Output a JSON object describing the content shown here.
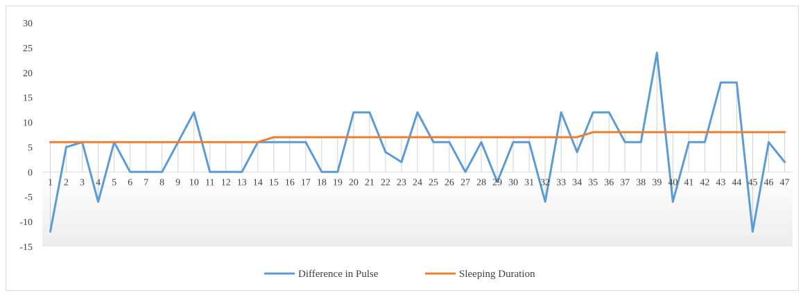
{
  "chart_data": {
    "type": "line",
    "title": "",
    "xlabel": "",
    "ylabel": "",
    "x": [
      1,
      2,
      3,
      4,
      5,
      6,
      7,
      8,
      9,
      10,
      11,
      12,
      13,
      14,
      15,
      16,
      17,
      18,
      19,
      20,
      21,
      22,
      23,
      24,
      25,
      26,
      27,
      28,
      29,
      30,
      31,
      32,
      33,
      34,
      35,
      36,
      37,
      38,
      39,
      40,
      41,
      42,
      43,
      44,
      45,
      46,
      47
    ],
    "ylim": [
      -15,
      30
    ],
    "yticks": [
      30,
      25,
      20,
      15,
      10,
      5,
      0,
      -5,
      -10,
      -15
    ],
    "grid": "vertical drop lines at category positions",
    "legend_position": "bottom",
    "series": [
      {
        "name": "Difference in Pulse",
        "color": "#5b9bd5",
        "values": [
          -12,
          5,
          6,
          -6,
          6,
          0,
          0,
          0,
          6,
          12,
          0,
          0,
          0,
          6,
          6,
          6,
          6,
          0,
          0,
          12,
          12,
          4,
          2,
          12,
          6,
          6,
          0,
          6,
          -2,
          6,
          6,
          -6,
          12,
          4,
          12,
          12,
          6,
          6,
          24,
          -6,
          6,
          6,
          18,
          18,
          -12,
          6,
          2
        ]
      },
      {
        "name": "Sleeping Duration",
        "color": "#ed7d31",
        "values": [
          6,
          6,
          6,
          6,
          6,
          6,
          6,
          6,
          6,
          6,
          6,
          6,
          6,
          6,
          7,
          7,
          7,
          7,
          7,
          7,
          7,
          7,
          7,
          7,
          7,
          7,
          7,
          7,
          7,
          7,
          7,
          7,
          7,
          7,
          8,
          8,
          8,
          8,
          8,
          8,
          8,
          8,
          8,
          8,
          8,
          8,
          8
        ]
      }
    ]
  }
}
